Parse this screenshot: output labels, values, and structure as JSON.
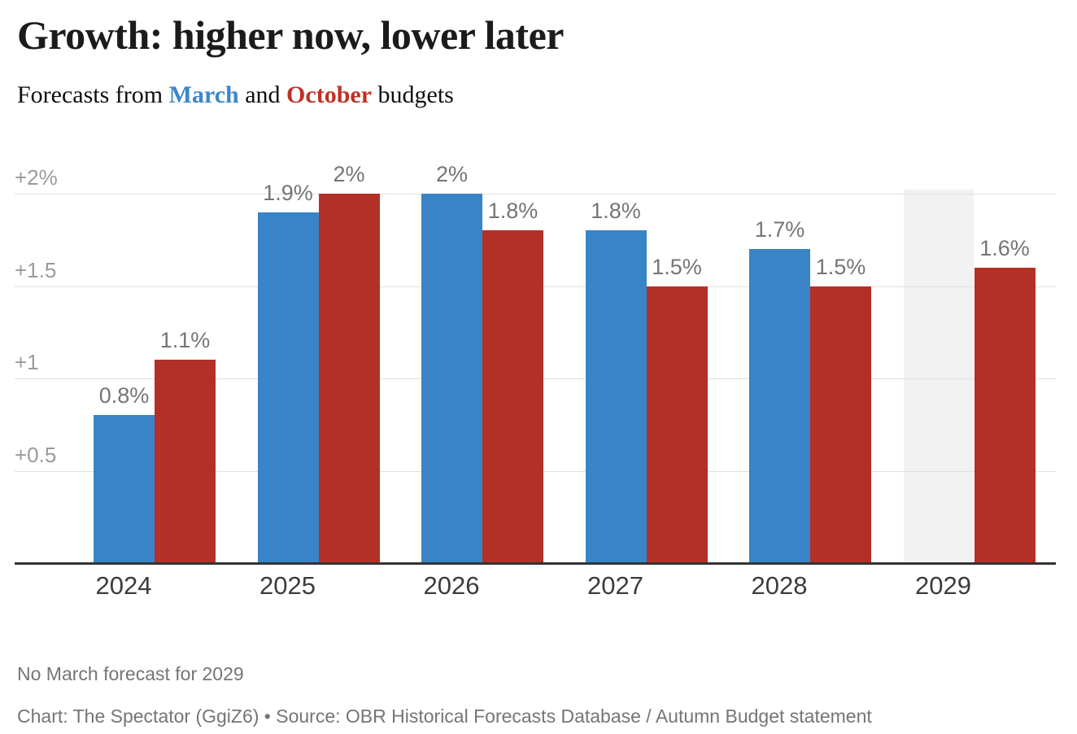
{
  "header": {
    "title": "Growth: higher now, lower later",
    "subtitle_prefix": "Forecasts from ",
    "subtitle_march": "March",
    "subtitle_and": " and ",
    "subtitle_october": "October",
    "subtitle_suffix": " budgets"
  },
  "colors": {
    "march_bar": "#3884c6",
    "october_bar": "#b33027",
    "march_text": "#3d86c6",
    "october_text": "#bf3127",
    "no_data_band": "#f2f2f2",
    "gridline": "#e0e0e0",
    "axis_line": "#333333",
    "value_label": "#757575",
    "tick_label": "#9b9b9b",
    "x_label": "#3c3c3c"
  },
  "chart_data": {
    "type": "bar",
    "title": "Growth: higher now, lower later",
    "subtitle": "Forecasts from March and October budgets",
    "categories": [
      "2024",
      "2025",
      "2026",
      "2027",
      "2028",
      "2029"
    ],
    "series": [
      {
        "name": "March",
        "color": "#3884c6",
        "values": [
          0.8,
          1.9,
          2.0,
          1.8,
          1.7,
          null
        ],
        "labels": [
          "0.8%",
          "1.9%",
          "2%",
          "1.8%",
          "1.7%",
          null
        ]
      },
      {
        "name": "October",
        "color": "#b33027",
        "values": [
          1.1,
          2.0,
          1.8,
          1.5,
          1.5,
          1.6
        ],
        "labels": [
          "1.1%",
          "2%",
          "1.8%",
          "1.5%",
          "1.5%",
          "1.6%"
        ]
      }
    ],
    "y_ticks": [
      {
        "value": 0.5,
        "label": "+0.5"
      },
      {
        "value": 1.0,
        "label": "+1"
      },
      {
        "value": 1.5,
        "label": "+1.5"
      },
      {
        "value": 2.0,
        "label": "+2%"
      }
    ],
    "ylim": [
      0,
      2.2
    ],
    "unit": "%",
    "grid": true,
    "legend_position": "in-subtitle",
    "no_data": {
      "category": "2029",
      "series": "March"
    }
  },
  "footer": {
    "note": "No March forecast for 2029",
    "credit": "Chart: The Spectator (GgiZ6) • Source: OBR Historical Forecasts Database / Autumn Budget statement"
  }
}
